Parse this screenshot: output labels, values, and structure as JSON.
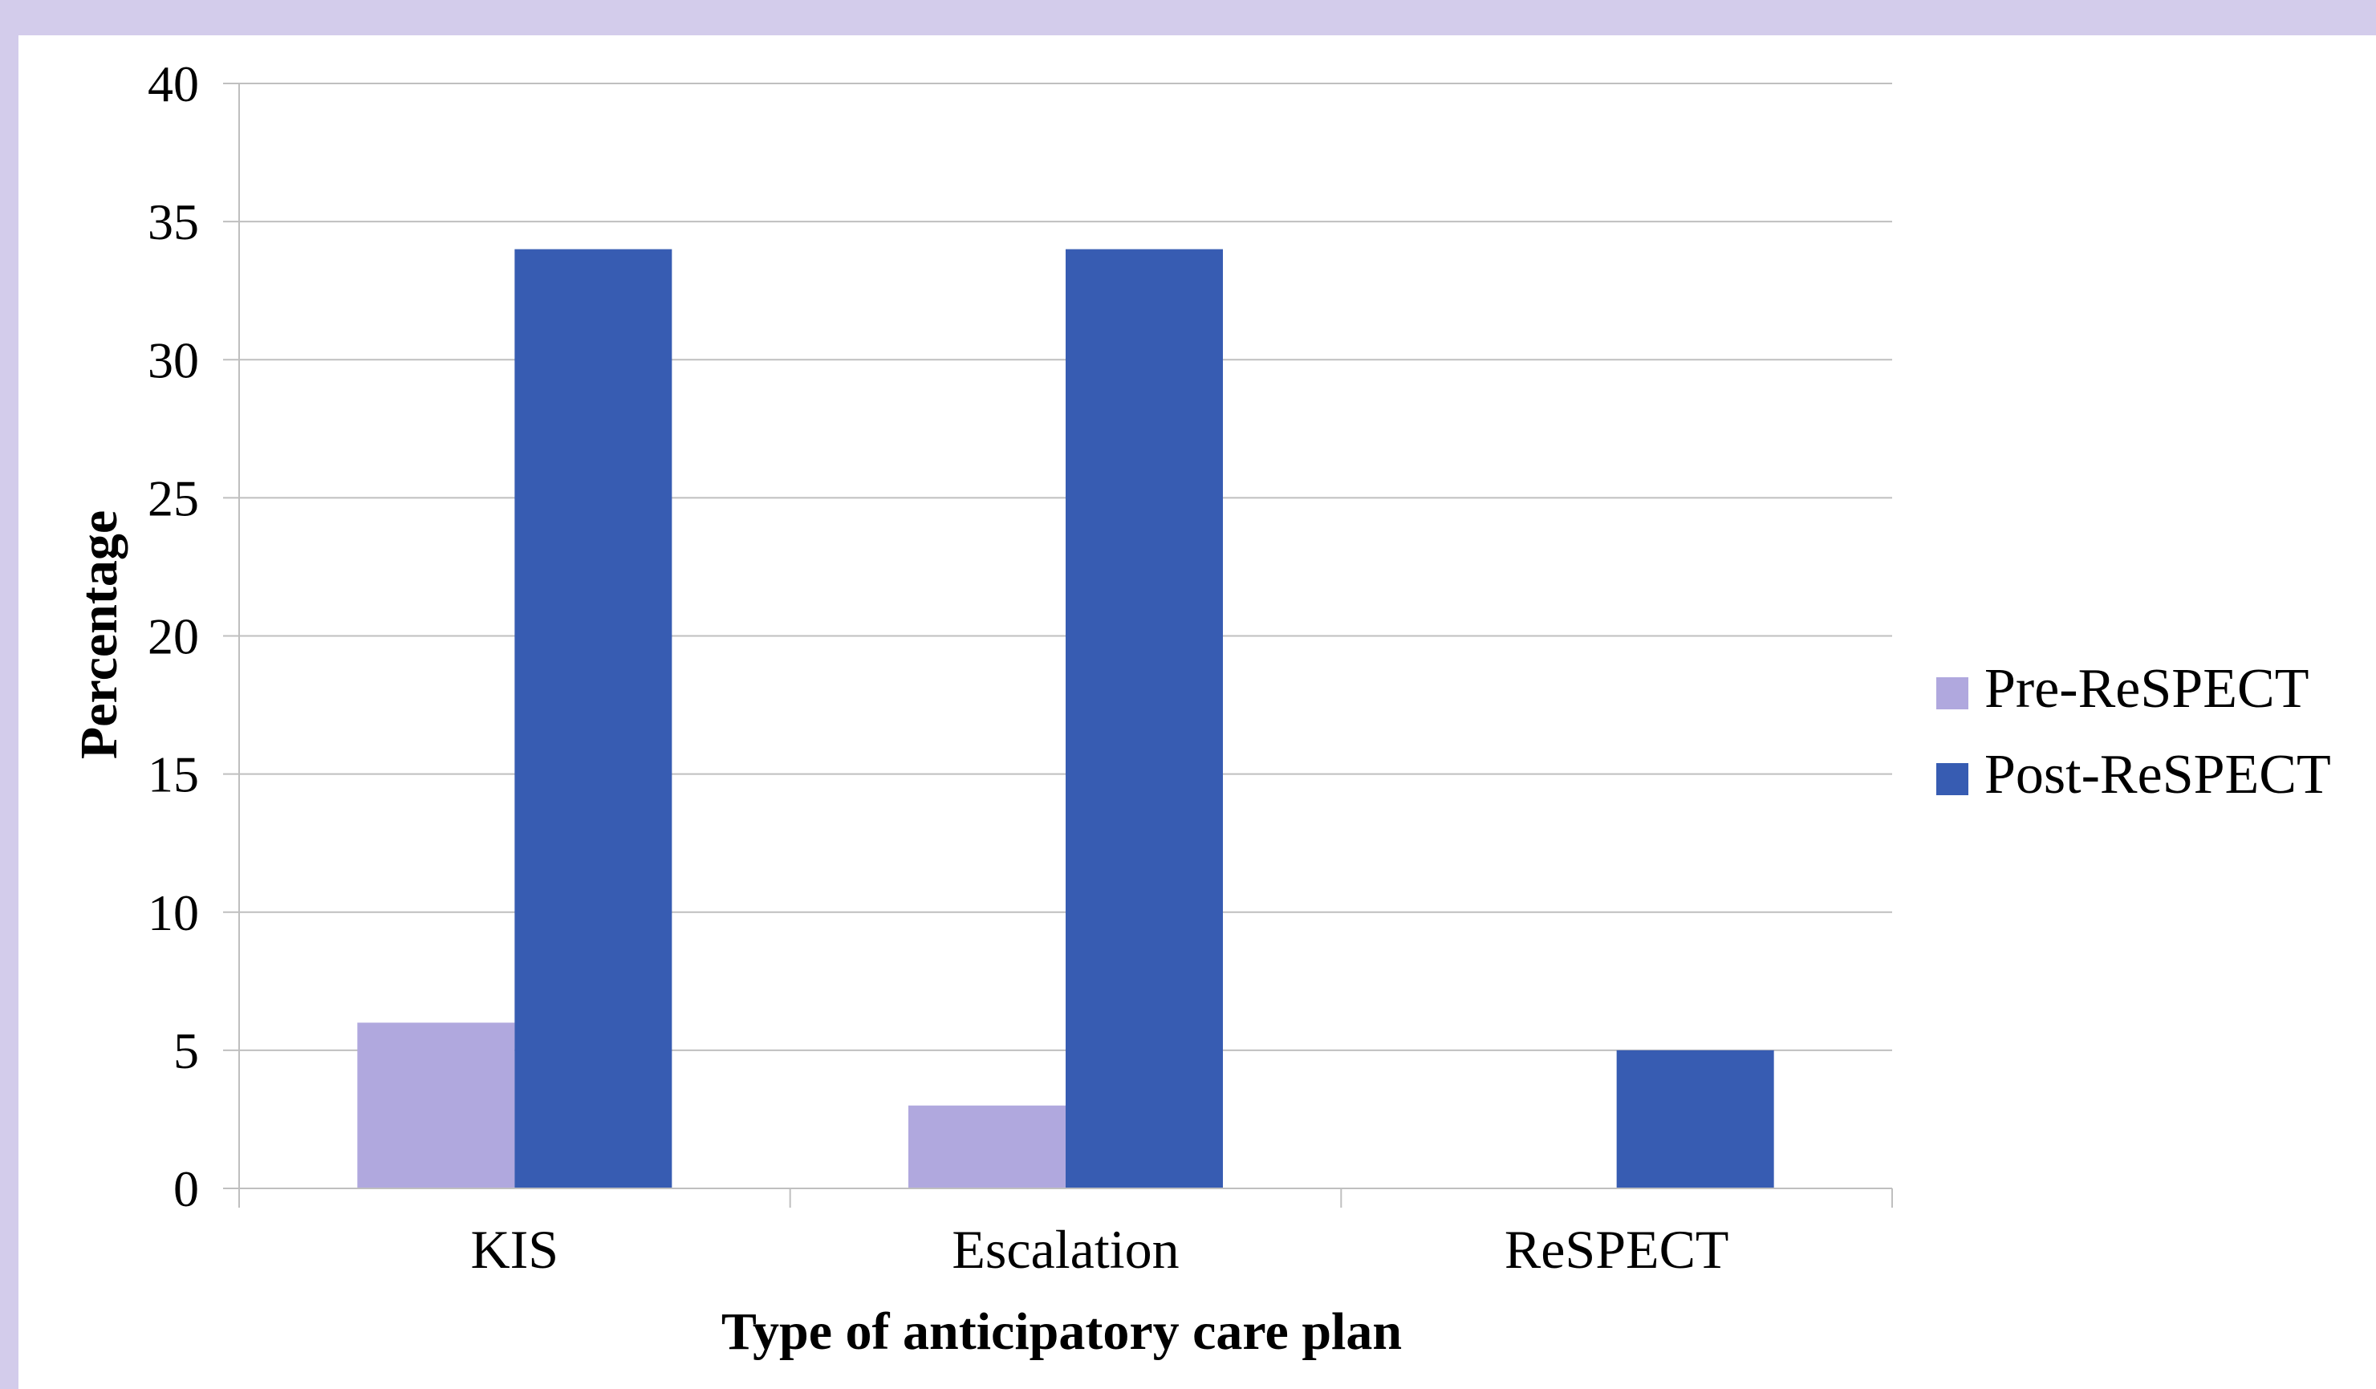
{
  "chart_data": {
    "type": "bar",
    "categories": [
      "KIS",
      "Escalation",
      "ReSPECT"
    ],
    "series": [
      {
        "name": "Pre-ReSPECT",
        "values": [
          6,
          3,
          0
        ],
        "color": "#b0a8de"
      },
      {
        "name": "Post-ReSPECT",
        "values": [
          34,
          34,
          5
        ],
        "color": "#375cb2"
      }
    ],
    "title": "",
    "xlabel": "Type of anticipatory care plan",
    "ylabel": "Percentage",
    "ylim": [
      0,
      40
    ],
    "yticks": [
      0,
      5,
      10,
      15,
      20,
      25,
      30,
      35,
      40
    ],
    "grid": true,
    "legend_position": "right"
  },
  "colors": {
    "frame": "#d3cceb",
    "gridline": "#bfbfbf"
  }
}
